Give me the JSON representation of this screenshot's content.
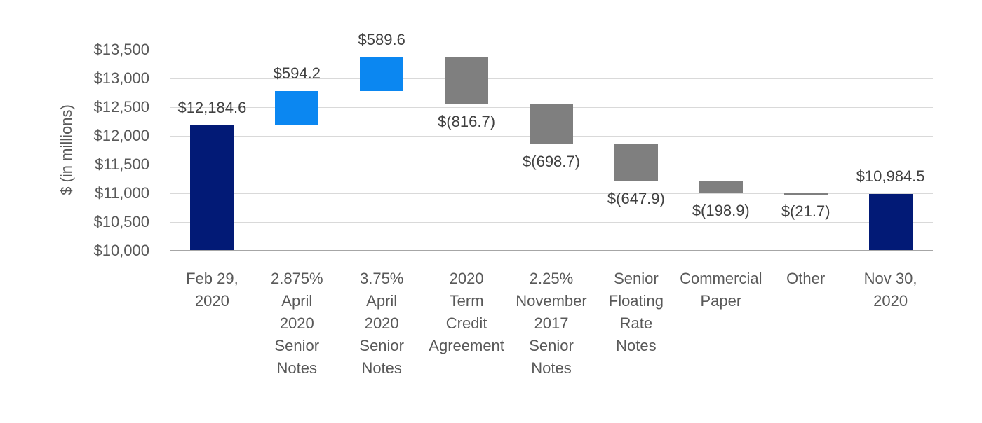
{
  "chart_data": {
    "type": "bar",
    "subtype": "waterfall",
    "title": "",
    "ylabel": "$ (in millions)",
    "xlabel": "",
    "ylim": [
      10000,
      13500
    ],
    "ytick_step": 500,
    "ytick_prefix": "$",
    "grid": true,
    "legend": false,
    "bars": [
      {
        "category": "Feb 29, 2020",
        "category_lines": "Feb 29,\n2020",
        "value": 12184.6,
        "kind": "total",
        "display": "$12,184.6"
      },
      {
        "category": "2.875% April 2020 Senior Notes",
        "category_lines": "2.875%\nApril\n2020\nSenior\nNotes",
        "value": 594.2,
        "kind": "increase",
        "display": "$594.2"
      },
      {
        "category": "3.75% April 2020 Senior Notes",
        "category_lines": "3.75%\nApril\n2020\nSenior\nNotes",
        "value": 589.6,
        "kind": "increase",
        "display": "$589.6"
      },
      {
        "category": "2020 Term Credit Agreement",
        "category_lines": "2020\nTerm\nCredit\nAgreement",
        "value": -816.7,
        "kind": "decrease",
        "display": "$(816.7)"
      },
      {
        "category": "2.25% November 2017 Senior Notes",
        "category_lines": "2.25%\nNovember\n2017\nSenior\nNotes",
        "value": -698.7,
        "kind": "decrease",
        "display": "$(698.7)"
      },
      {
        "category": "Senior Floating Rate Notes",
        "category_lines": "Senior\nFloating\nRate\nNotes",
        "value": -647.9,
        "kind": "decrease",
        "display": "$(647.9)"
      },
      {
        "category": "Commercial Paper",
        "category_lines": "Commercial\nPaper",
        "value": -198.9,
        "kind": "decrease",
        "display": "$(198.9)"
      },
      {
        "category": "Other",
        "category_lines": "Other",
        "value": -21.7,
        "kind": "decrease",
        "display": "$(21.7)"
      },
      {
        "category": "Nov 30, 2020",
        "category_lines": "Nov 30,\n2020",
        "value": 10984.5,
        "kind": "total",
        "display": "$10,984.5"
      }
    ],
    "colors": {
      "total": "#021a76",
      "increase": "#0b87f1",
      "decrease": "#7f7f7f",
      "gridline": "#d9d9d9",
      "axis_line": "#a6a6a6",
      "axis_text": "#595959",
      "data_label_text": "#404040"
    }
  }
}
